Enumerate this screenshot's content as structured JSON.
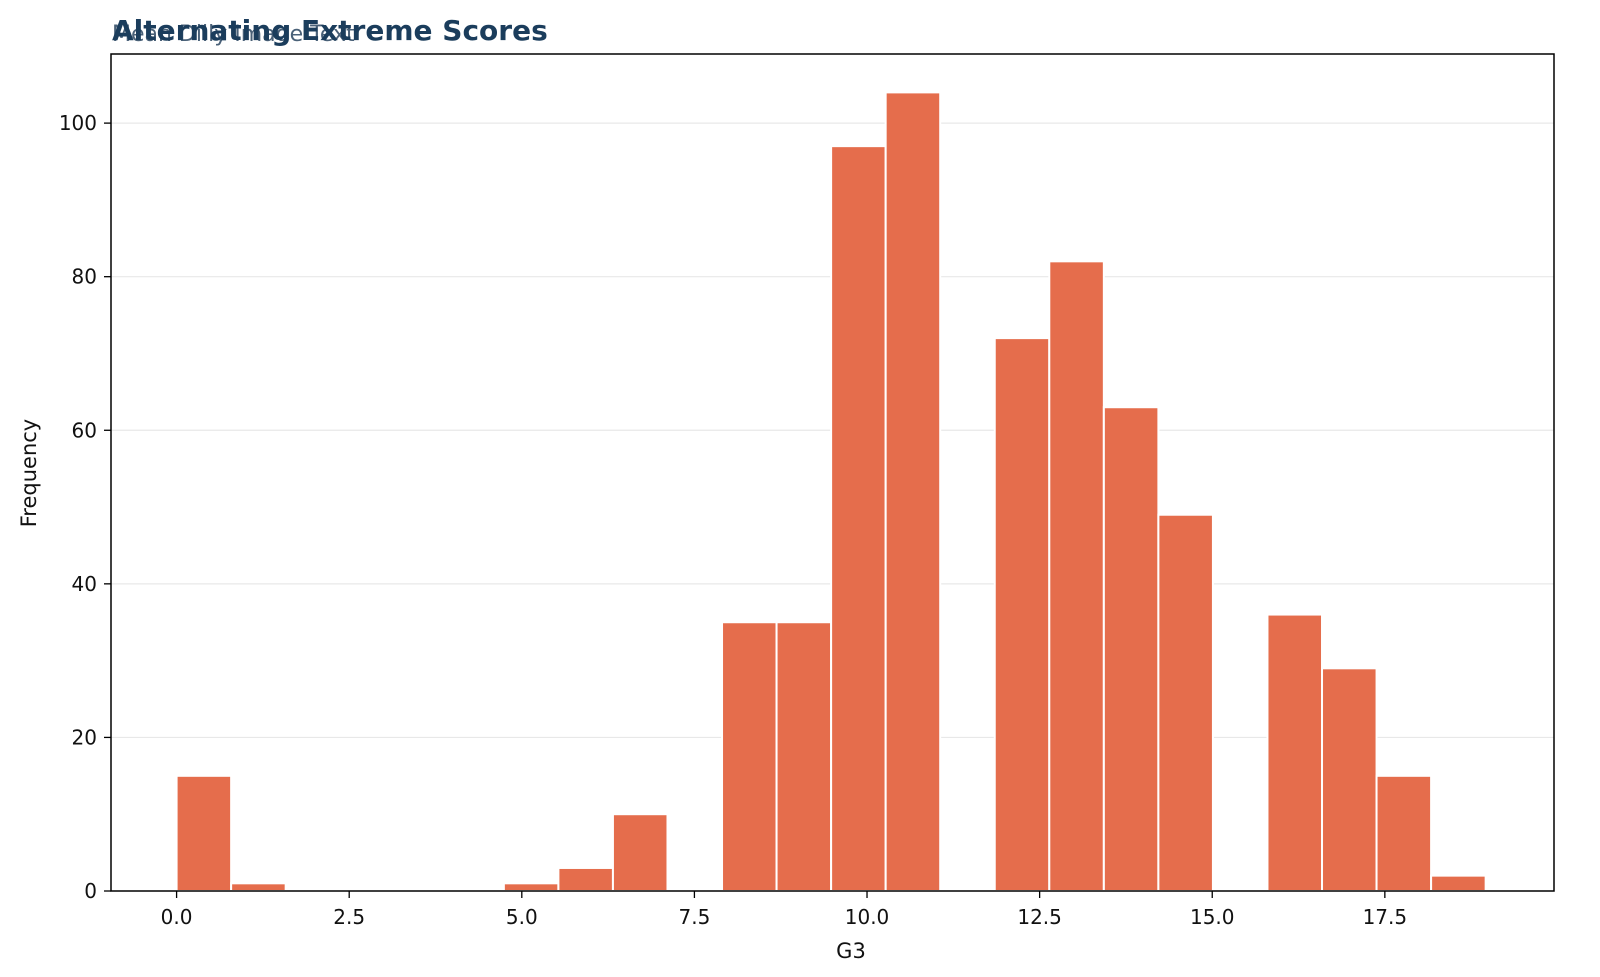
{
  "chart_data": {
    "type": "bar",
    "title": "Alternating Extreme Scores",
    "subtitle": "Mean Dilly Image Text",
    "xlabel": "G3",
    "ylabel": "Frequency",
    "xlim": [
      -0.95,
      19.95
    ],
    "ylim": [
      0,
      109
    ],
    "x_ticks": [
      0.0,
      2.5,
      5.0,
      7.5,
      10.0,
      12.5,
      15.0,
      17.5
    ],
    "x_tick_labels": [
      "0.0",
      "2.5",
      "5.0",
      "7.5",
      "10.0",
      "12.5",
      "15.0",
      "17.5"
    ],
    "y_ticks": [
      0,
      20,
      40,
      60,
      80,
      100
    ],
    "y_tick_labels": [
      "0",
      "20",
      "40",
      "60",
      "80",
      "100"
    ],
    "grid": "y",
    "bar_color": "#e56d4c",
    "bins": [
      {
        "x0": 0.0,
        "x1": 0.79,
        "count": 15
      },
      {
        "x0": 0.79,
        "x1": 1.58,
        "count": 1
      },
      {
        "x0": 1.58,
        "x1": 2.37,
        "count": 0
      },
      {
        "x0": 2.37,
        "x1": 3.16,
        "count": 0
      },
      {
        "x0": 3.16,
        "x1": 3.95,
        "count": 0
      },
      {
        "x0": 3.95,
        "x1": 4.74,
        "count": 0
      },
      {
        "x0": 4.74,
        "x1": 5.53,
        "count": 1
      },
      {
        "x0": 5.53,
        "x1": 6.32,
        "count": 3
      },
      {
        "x0": 6.32,
        "x1": 7.11,
        "count": 10
      },
      {
        "x0": 7.11,
        "x1": 7.9,
        "count": 0
      },
      {
        "x0": 7.9,
        "x1": 8.69,
        "count": 35
      },
      {
        "x0": 8.69,
        "x1": 9.48,
        "count": 35
      },
      {
        "x0": 9.48,
        "x1": 10.27,
        "count": 97
      },
      {
        "x0": 10.27,
        "x1": 11.06,
        "count": 104
      },
      {
        "x0": 11.06,
        "x1": 11.85,
        "count": 0
      },
      {
        "x0": 11.85,
        "x1": 12.64,
        "count": 72
      },
      {
        "x0": 12.64,
        "x1": 13.43,
        "count": 82
      },
      {
        "x0": 13.43,
        "x1": 14.22,
        "count": 63
      },
      {
        "x0": 14.22,
        "x1": 15.01,
        "count": 49
      },
      {
        "x0": 15.01,
        "x1": 15.8,
        "count": 0
      },
      {
        "x0": 15.8,
        "x1": 16.59,
        "count": 36
      },
      {
        "x0": 16.59,
        "x1": 17.38,
        "count": 29
      },
      {
        "x0": 17.38,
        "x1": 18.17,
        "count": 15
      },
      {
        "x0": 18.17,
        "x1": 18.96,
        "count": 2
      }
    ]
  }
}
